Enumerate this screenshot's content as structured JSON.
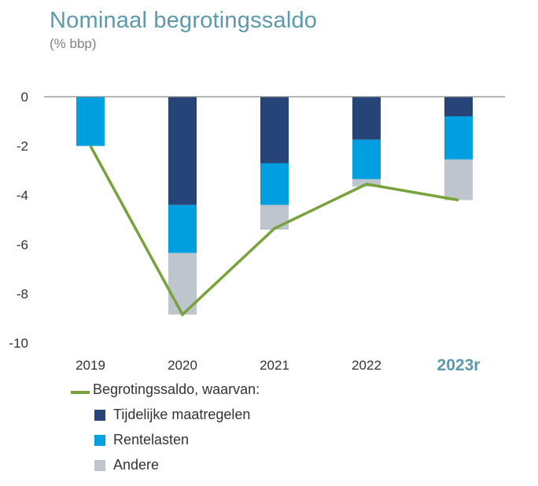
{
  "chart_data": {
    "type": "bar",
    "title": "Nominaal begrotingssaldo",
    "subtitle": "(% bbp)",
    "categories": [
      "2019",
      "2020",
      "2021",
      "2022",
      "2023r"
    ],
    "highlight_category": "2023r",
    "ylim": [
      -10,
      0
    ],
    "yticks": [
      0,
      -2,
      -4,
      -6,
      -8,
      -10
    ],
    "stacked": true,
    "series": [
      {
        "name": "Tijdelijke maatregelen",
        "kind": "bar",
        "color": "#264478",
        "values": [
          0,
          -4.4,
          -2.7,
          -1.75,
          -0.8
        ]
      },
      {
        "name": "Rentelasten",
        "kind": "bar",
        "color": "#00a0e0",
        "values": [
          -2.0,
          -1.95,
          -1.7,
          -1.6,
          -1.75
        ]
      },
      {
        "name": "Andere",
        "kind": "bar",
        "color": "#bfc5cc",
        "values": [
          0,
          -2.5,
          -1.0,
          -0.3,
          -1.65
        ]
      },
      {
        "name": "Begrotingssaldo, waarvan:",
        "kind": "line",
        "color": "#78a23b",
        "values": [
          -2.0,
          -8.85,
          -5.35,
          -3.55,
          -4.2
        ]
      }
    ]
  },
  "legend": {
    "line_label": "Begrotingssaldo, waarvan:",
    "items": [
      "Tijdelijke maatregelen",
      "Rentelasten",
      "Andere"
    ]
  }
}
